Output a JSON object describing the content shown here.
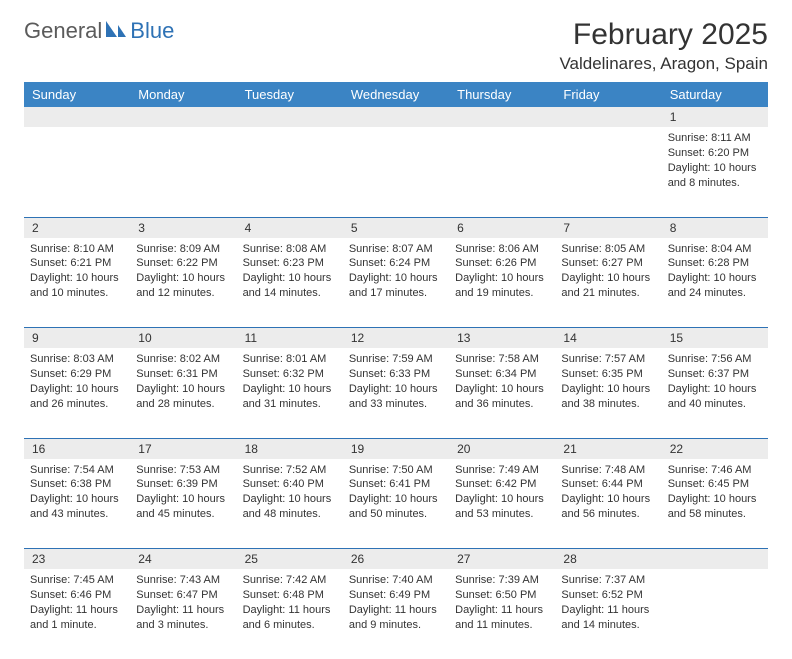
{
  "brand": {
    "part1": "General",
    "part2": "Blue"
  },
  "title": "February 2025",
  "location": "Valdelinares, Aragon, Spain",
  "colors": {
    "header_bg": "#3b84c4",
    "border": "#2e72b5",
    "alt_row": "#ececec",
    "text": "#333333",
    "logo_gray": "#5b5b5b",
    "logo_blue": "#2e72b5",
    "page_bg": "#ffffff"
  },
  "day_headers": [
    "Sunday",
    "Monday",
    "Tuesday",
    "Wednesday",
    "Thursday",
    "Friday",
    "Saturday"
  ],
  "weeks": [
    [
      {
        "n": "",
        "t": ""
      },
      {
        "n": "",
        "t": ""
      },
      {
        "n": "",
        "t": ""
      },
      {
        "n": "",
        "t": ""
      },
      {
        "n": "",
        "t": ""
      },
      {
        "n": "",
        "t": ""
      },
      {
        "n": "1",
        "t": "Sunrise: 8:11 AM\nSunset: 6:20 PM\nDaylight: 10 hours and 8 minutes."
      }
    ],
    [
      {
        "n": "2",
        "t": "Sunrise: 8:10 AM\nSunset: 6:21 PM\nDaylight: 10 hours and 10 minutes."
      },
      {
        "n": "3",
        "t": "Sunrise: 8:09 AM\nSunset: 6:22 PM\nDaylight: 10 hours and 12 minutes."
      },
      {
        "n": "4",
        "t": "Sunrise: 8:08 AM\nSunset: 6:23 PM\nDaylight: 10 hours and 14 minutes."
      },
      {
        "n": "5",
        "t": "Sunrise: 8:07 AM\nSunset: 6:24 PM\nDaylight: 10 hours and 17 minutes."
      },
      {
        "n": "6",
        "t": "Sunrise: 8:06 AM\nSunset: 6:26 PM\nDaylight: 10 hours and 19 minutes."
      },
      {
        "n": "7",
        "t": "Sunrise: 8:05 AM\nSunset: 6:27 PM\nDaylight: 10 hours and 21 minutes."
      },
      {
        "n": "8",
        "t": "Sunrise: 8:04 AM\nSunset: 6:28 PM\nDaylight: 10 hours and 24 minutes."
      }
    ],
    [
      {
        "n": "9",
        "t": "Sunrise: 8:03 AM\nSunset: 6:29 PM\nDaylight: 10 hours and 26 minutes."
      },
      {
        "n": "10",
        "t": "Sunrise: 8:02 AM\nSunset: 6:31 PM\nDaylight: 10 hours and 28 minutes."
      },
      {
        "n": "11",
        "t": "Sunrise: 8:01 AM\nSunset: 6:32 PM\nDaylight: 10 hours and 31 minutes."
      },
      {
        "n": "12",
        "t": "Sunrise: 7:59 AM\nSunset: 6:33 PM\nDaylight: 10 hours and 33 minutes."
      },
      {
        "n": "13",
        "t": "Sunrise: 7:58 AM\nSunset: 6:34 PM\nDaylight: 10 hours and 36 minutes."
      },
      {
        "n": "14",
        "t": "Sunrise: 7:57 AM\nSunset: 6:35 PM\nDaylight: 10 hours and 38 minutes."
      },
      {
        "n": "15",
        "t": "Sunrise: 7:56 AM\nSunset: 6:37 PM\nDaylight: 10 hours and 40 minutes."
      }
    ],
    [
      {
        "n": "16",
        "t": "Sunrise: 7:54 AM\nSunset: 6:38 PM\nDaylight: 10 hours and 43 minutes."
      },
      {
        "n": "17",
        "t": "Sunrise: 7:53 AM\nSunset: 6:39 PM\nDaylight: 10 hours and 45 minutes."
      },
      {
        "n": "18",
        "t": "Sunrise: 7:52 AM\nSunset: 6:40 PM\nDaylight: 10 hours and 48 minutes."
      },
      {
        "n": "19",
        "t": "Sunrise: 7:50 AM\nSunset: 6:41 PM\nDaylight: 10 hours and 50 minutes."
      },
      {
        "n": "20",
        "t": "Sunrise: 7:49 AM\nSunset: 6:42 PM\nDaylight: 10 hours and 53 minutes."
      },
      {
        "n": "21",
        "t": "Sunrise: 7:48 AM\nSunset: 6:44 PM\nDaylight: 10 hours and 56 minutes."
      },
      {
        "n": "22",
        "t": "Sunrise: 7:46 AM\nSunset: 6:45 PM\nDaylight: 10 hours and 58 minutes."
      }
    ],
    [
      {
        "n": "23",
        "t": "Sunrise: 7:45 AM\nSunset: 6:46 PM\nDaylight: 11 hours and 1 minute."
      },
      {
        "n": "24",
        "t": "Sunrise: 7:43 AM\nSunset: 6:47 PM\nDaylight: 11 hours and 3 minutes."
      },
      {
        "n": "25",
        "t": "Sunrise: 7:42 AM\nSunset: 6:48 PM\nDaylight: 11 hours and 6 minutes."
      },
      {
        "n": "26",
        "t": "Sunrise: 7:40 AM\nSunset: 6:49 PM\nDaylight: 11 hours and 9 minutes."
      },
      {
        "n": "27",
        "t": "Sunrise: 7:39 AM\nSunset: 6:50 PM\nDaylight: 11 hours and 11 minutes."
      },
      {
        "n": "28",
        "t": "Sunrise: 7:37 AM\nSunset: 6:52 PM\nDaylight: 11 hours and 14 minutes."
      },
      {
        "n": "",
        "t": ""
      }
    ]
  ]
}
